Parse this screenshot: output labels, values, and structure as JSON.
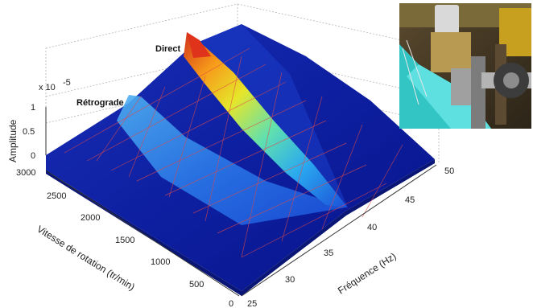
{
  "chart_data": {
    "type": "surface",
    "title": "",
    "axes": {
      "x": {
        "label": "Vitesse de rotation (tr/min)",
        "range": [
          0,
          3000
        ],
        "ticks": [
          "0",
          "500",
          "1000",
          "1500",
          "2000",
          "2500",
          "3000"
        ]
      },
      "y": {
        "label": "Fréquence (Hz)",
        "range": [
          25,
          50
        ],
        "ticks": [
          "25",
          "30",
          "35",
          "40",
          "45",
          "50"
        ]
      },
      "z": {
        "label": "Amplitude",
        "range": [
          0,
          1
        ],
        "scale_label": "x 10",
        "scale_exponent": "-5",
        "ticks": [
          "0",
          "0.5",
          "1"
        ]
      }
    },
    "annotations": [
      {
        "text": "Direct"
      },
      {
        "text": "Rétrograde"
      }
    ],
    "series": [
      {
        "name": "Direct",
        "x": [
          0,
          500,
          1000,
          1500,
          2000,
          2500,
          3000
        ],
        "y": [
          37.5,
          38.8,
          40.2,
          41.8,
          43.6,
          45.6,
          47.8
        ],
        "z": [
          0.05,
          0.15,
          0.28,
          0.42,
          0.6,
          0.85,
          1.0
        ]
      },
      {
        "name": "Rétrograde",
        "x": [
          0,
          500,
          1000,
          1500,
          2000,
          2500,
          3000
        ],
        "y": [
          37.5,
          36.3,
          35.0,
          33.6,
          32.1,
          30.4,
          28.6
        ],
        "z": [
          0.05,
          0.1,
          0.14,
          0.18,
          0.25,
          0.35,
          0.55
        ]
      }
    ],
    "grid": true,
    "colormap": "jet"
  },
  "inset_photo": {
    "name": "test-rig-photo"
  }
}
